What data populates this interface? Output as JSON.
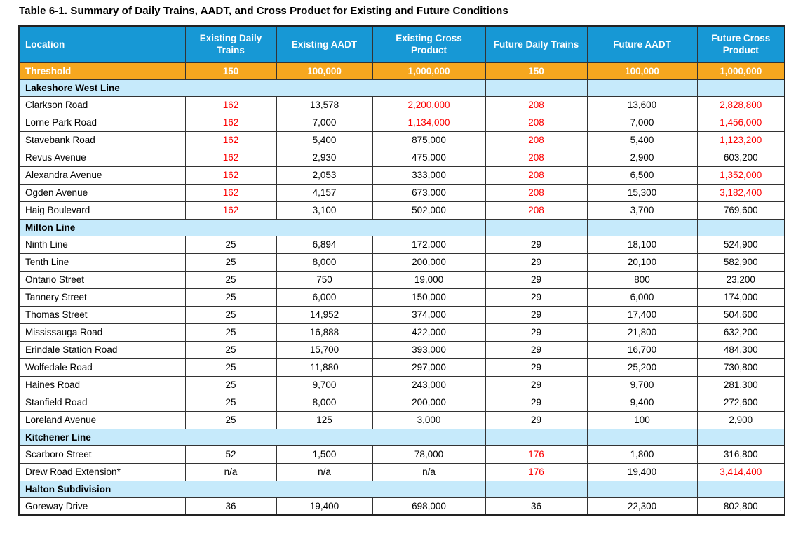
{
  "title": "Table 6-1. Summary of Daily Trains, AADT, and Cross Product for Existing and Future Conditions",
  "colors": {
    "header_bg": "#1798D5",
    "threshold_bg": "#F6A71F",
    "section_bg": "#C6EAFB",
    "exceed_text": "#FC0000",
    "border": "#333333"
  },
  "table": {
    "columns": [
      "Location",
      "Existing Daily Trains",
      "Existing AADT",
      "Existing Cross Product",
      "Future Daily Trains",
      "Future AADT",
      "Future Cross Product"
    ],
    "threshold_row": {
      "label": "Threshold",
      "values": [
        "150",
        "100,000",
        "1,000,000",
        "150",
        "100,000",
        "1,000,000"
      ]
    },
    "sections": [
      {
        "name": "Lakeshore West Line",
        "rows": [
          {
            "location": "Clarkson Road",
            "values": [
              "162",
              "13,578",
              "2,200,000",
              "208",
              "13,600",
              "2,828,800"
            ]
          },
          {
            "location": "Lorne Park Road",
            "values": [
              "162",
              "7,000",
              "1,134,000",
              "208",
              "7,000",
              "1,456,000"
            ]
          },
          {
            "location": "Stavebank Road",
            "values": [
              "162",
              "5,400",
              "875,000",
              "208",
              "5,400",
              "1,123,200"
            ]
          },
          {
            "location": "Revus Avenue",
            "values": [
              "162",
              "2,930",
              "475,000",
              "208",
              "2,900",
              "603,200"
            ]
          },
          {
            "location": "Alexandra Avenue",
            "values": [
              "162",
              "2,053",
              "333,000",
              "208",
              "6,500",
              "1,352,000"
            ]
          },
          {
            "location": "Ogden Avenue",
            "values": [
              "162",
              "4,157",
              "673,000",
              "208",
              "15,300",
              "3,182,400"
            ]
          },
          {
            "location": "Haig Boulevard",
            "values": [
              "162",
              "3,100",
              "502,000",
              "208",
              "3,700",
              "769,600"
            ]
          }
        ]
      },
      {
        "name": "Milton Line",
        "rows": [
          {
            "location": "Ninth Line",
            "values": [
              "25",
              "6,894",
              "172,000",
              "29",
              "18,100",
              "524,900"
            ]
          },
          {
            "location": "Tenth Line",
            "values": [
              "25",
              "8,000",
              "200,000",
              "29",
              "20,100",
              "582,900"
            ]
          },
          {
            "location": "Ontario Street",
            "values": [
              "25",
              "750",
              "19,000",
              "29",
              "800",
              "23,200"
            ]
          },
          {
            "location": "Tannery Street",
            "values": [
              "25",
              "6,000",
              "150,000",
              "29",
              "6,000",
              "174,000"
            ]
          },
          {
            "location": "Thomas Street",
            "values": [
              "25",
              "14,952",
              "374,000",
              "29",
              "17,400",
              "504,600"
            ]
          },
          {
            "location": "Mississauga Road",
            "values": [
              "25",
              "16,888",
              "422,000",
              "29",
              "21,800",
              "632,200"
            ]
          },
          {
            "location": "Erindale Station Road",
            "values": [
              "25",
              "15,700",
              "393,000",
              "29",
              "16,700",
              "484,300"
            ]
          },
          {
            "location": "Wolfedale Road",
            "values": [
              "25",
              "11,880",
              "297,000",
              "29",
              "25,200",
              "730,800"
            ]
          },
          {
            "location": "Haines Road",
            "values": [
              "25",
              "9,700",
              "243,000",
              "29",
              "9,700",
              "281,300"
            ]
          },
          {
            "location": "Stanfield Road",
            "values": [
              "25",
              "8,000",
              "200,000",
              "29",
              "9,400",
              "272,600"
            ]
          },
          {
            "location": "Loreland Avenue",
            "values": [
              "25",
              "125",
              "3,000",
              "29",
              "100",
              "2,900"
            ]
          }
        ]
      },
      {
        "name": "Kitchener Line",
        "rows": [
          {
            "location": "Scarboro Street",
            "values": [
              "52",
              "1,500",
              "78,000",
              "176",
              "1,800",
              "316,800"
            ]
          },
          {
            "location": "Drew Road Extension*",
            "values": [
              "n/a",
              "n/a",
              "n/a",
              "176",
              "19,400",
              "3,414,400"
            ]
          }
        ]
      },
      {
        "name": "Halton Subdivision",
        "rows": [
          {
            "location": "Goreway Drive",
            "values": [
              "36",
              "19,400",
              "698,000",
              "36",
              "22,300",
              "802,800"
            ]
          }
        ]
      }
    ]
  }
}
